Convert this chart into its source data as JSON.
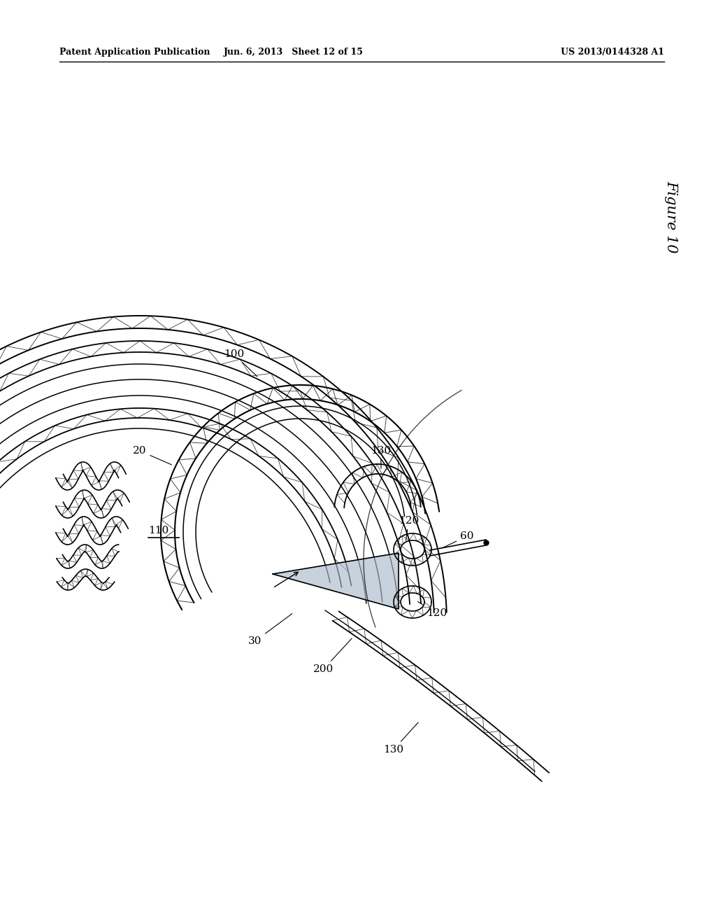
{
  "header_left": "Patent Application Publication",
  "header_center": "Jun. 6, 2013   Sheet 12 of 15",
  "header_right": "US 2013/0144328 A1",
  "figure_label": "Figure 10",
  "bg_color": "#ffffff",
  "line_color": "#000000",
  "shaded_color": "#aabbcc"
}
